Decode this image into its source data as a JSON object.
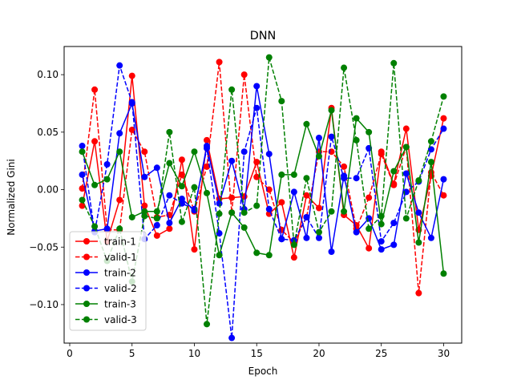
{
  "chart_data": {
    "type": "line",
    "title": "DNN",
    "xlabel": "Epoch",
    "ylabel": "Normalized Gini",
    "xlim": [
      -0.45,
      31.45
    ],
    "ylim": [
      -0.1335,
      0.1245
    ],
    "x_ticks": [
      0,
      5,
      10,
      15,
      20,
      25,
      30
    ],
    "x_tick_labels": [
      "0",
      "5",
      "10",
      "15",
      "20",
      "25",
      "30"
    ],
    "y_ticks": [
      -0.1,
      -0.05,
      0.0,
      0.05,
      0.1
    ],
    "y_tick_labels": [
      "−0.10",
      "−0.05",
      "0.00",
      "0.05",
      "0.10"
    ],
    "grid": false,
    "legend_position": "lower-left",
    "x": [
      1,
      2,
      3,
      4,
      5,
      6,
      7,
      8,
      9,
      10,
      11,
      12,
      13,
      14,
      15,
      16,
      17,
      18,
      19,
      20,
      21,
      22,
      23,
      24,
      25,
      26,
      27,
      28,
      29,
      30
    ],
    "series": [
      {
        "name": "train-1",
        "color": "#ff0000",
        "linestyle": "solid",
        "values": [
          -0.014,
          0.042,
          -0.045,
          -0.009,
          0.099,
          -0.014,
          -0.04,
          -0.034,
          0.026,
          -0.052,
          0.043,
          -0.008,
          -0.007,
          -0.006,
          0.024,
          -0.021,
          -0.011,
          -0.059,
          -0.005,
          -0.016,
          0.071,
          -0.022,
          -0.031,
          -0.051,
          0.033,
          0.005,
          0.053,
          -0.035,
          0.012,
          0.062
        ]
      },
      {
        "name": "valid-1",
        "color": "#ff0000",
        "linestyle": "dashed",
        "values": [
          0.001,
          0.087,
          -0.035,
          -0.035,
          0.052,
          0.033,
          -0.024,
          -0.022,
          0.013,
          -0.019,
          0.02,
          0.111,
          -0.02,
          0.1,
          0.011,
          0.0,
          -0.035,
          -0.046,
          -0.024,
          0.033,
          0.033,
          0.02,
          -0.034,
          -0.007,
          0.031,
          0.004,
          0.037,
          -0.09,
          0.015,
          -0.005
        ]
      },
      {
        "name": "train-2",
        "color": "#0000ff",
        "linestyle": "solid",
        "values": [
          0.013,
          -0.036,
          -0.034,
          0.049,
          0.075,
          0.011,
          0.019,
          -0.029,
          -0.008,
          -0.018,
          0.038,
          -0.012,
          0.025,
          -0.017,
          0.09,
          0.031,
          -0.043,
          -0.002,
          -0.042,
          0.045,
          -0.054,
          0.012,
          -0.037,
          -0.025,
          -0.052,
          -0.048,
          0.014,
          -0.02,
          -0.042,
          0.009
        ]
      },
      {
        "name": "valid-2",
        "color": "#0000ff",
        "linestyle": "dashed",
        "values": [
          0.038,
          -0.037,
          0.022,
          0.108,
          0.076,
          -0.043,
          -0.031,
          -0.005,
          -0.012,
          -0.017,
          0.036,
          -0.038,
          -0.129,
          0.033,
          0.071,
          -0.017,
          -0.043,
          -0.044,
          -0.024,
          -0.042,
          0.046,
          0.01,
          0.01,
          0.036,
          -0.045,
          -0.029,
          -0.002,
          0.007,
          0.035,
          0.053
        ]
      },
      {
        "name": "train-3",
        "color": "#008000",
        "linestyle": "solid",
        "values": [
          0.033,
          0.004,
          0.009,
          0.033,
          -0.024,
          -0.019,
          -0.019,
          0.023,
          0.003,
          0.033,
          -0.003,
          -0.057,
          -0.02,
          -0.033,
          -0.055,
          -0.057,
          0.013,
          0.013,
          0.057,
          0.029,
          0.069,
          -0.019,
          0.062,
          0.05,
          -0.03,
          0.016,
          0.037,
          -0.046,
          0.024,
          -0.073
        ]
      },
      {
        "name": "valid-3",
        "color": "#008000",
        "linestyle": "dashed",
        "values": [
          -0.009,
          -0.032,
          -0.062,
          -0.034,
          -0.08,
          -0.023,
          -0.025,
          0.05,
          -0.028,
          0.002,
          -0.117,
          -0.021,
          0.087,
          -0.02,
          -0.014,
          0.115,
          0.077,
          -0.048,
          0.01,
          -0.037,
          -0.019,
          0.106,
          0.043,
          -0.034,
          -0.023,
          0.11,
          -0.025,
          0.008,
          0.042,
          0.081
        ]
      }
    ]
  }
}
